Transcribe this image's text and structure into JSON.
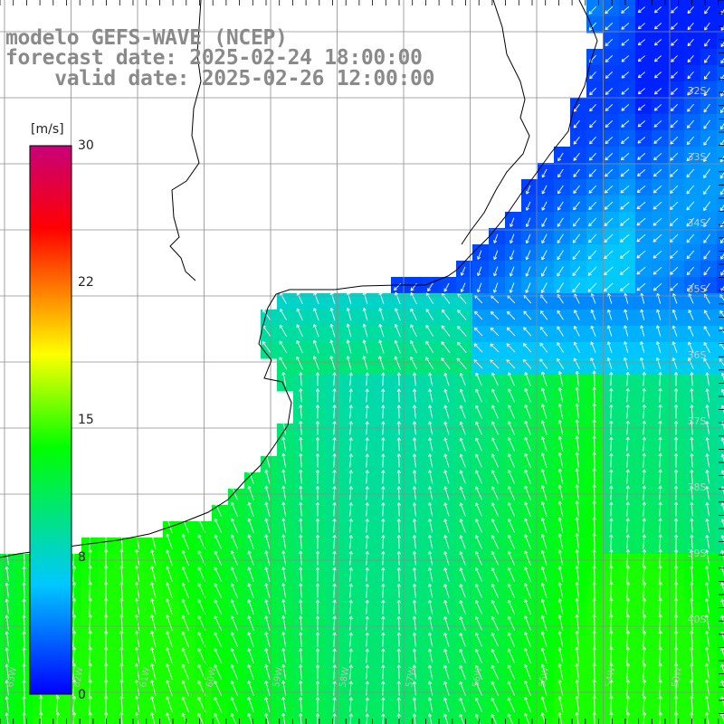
{
  "title": {
    "line1": "modelo GEFS-WAVE (NCEP)",
    "line2": "forecast date: 2025-02-24 18:00:00",
    "line3": "    valid date: 2025-02-26 12:00:00"
  },
  "colorbar": {
    "unit": "[m/s]",
    "ticks": [
      "30",
      "22",
      "15",
      "8",
      "0"
    ],
    "tick_values": [
      30,
      22,
      15,
      8,
      0
    ],
    "min": 0,
    "max": 30,
    "colors": [
      "#0000ff",
      "#00c8ff",
      "#00ff00",
      "#ffff00",
      "#ff0000",
      "#c80078"
    ]
  },
  "map": {
    "lat_labels": [
      "32S",
      "33S",
      "34S",
      "35S",
      "36S",
      "37S",
      "38S",
      "39S",
      "40S"
    ],
    "lon_labels": [
      "63W",
      "62W",
      "61W",
      "60W",
      "59W",
      "58W",
      "57W",
      "56W",
      "55W",
      "54W",
      "53W"
    ],
    "land_color": "#ffffff",
    "grid_color": "#8c8c8c",
    "coast_color": "#000000",
    "arrow_color": "#ffffff"
  }
}
